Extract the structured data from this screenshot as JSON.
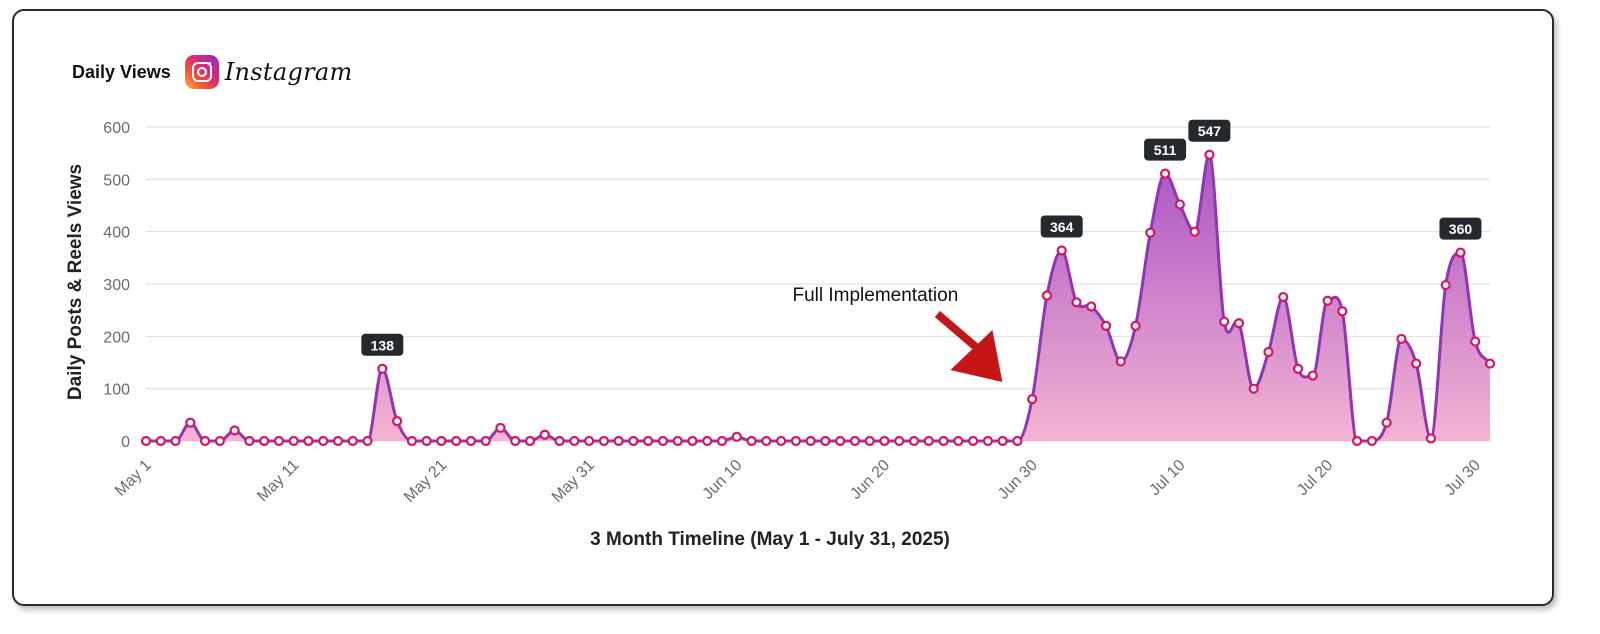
{
  "header": {
    "title": "Daily Views",
    "brand": "Instagram",
    "brand_icon": "instagram-icon"
  },
  "colors": {
    "line": "#8e35b8",
    "fill_top": "#a44bc0",
    "fill_bottom": "#f4b0d0",
    "marker": "#e0125e",
    "callout_bg": "#24292e",
    "arrow": "#c41616",
    "grid": "#dddddd"
  },
  "chart_data": {
    "type": "area",
    "title": "",
    "xlabel": "3 Month Timeline (May 1 - July 31, 2025)",
    "ylabel": "Daily Posts & Reels Views",
    "ylim": [
      0,
      600
    ],
    "yticks": [
      0,
      100,
      200,
      300,
      400,
      500,
      600
    ],
    "x_start": "May 1",
    "x_tick_labels": [
      {
        "label": "May 1",
        "day": 0
      },
      {
        "label": "May 11",
        "day": 10
      },
      {
        "label": "May 21",
        "day": 20
      },
      {
        "label": "May 31",
        "day": 30
      },
      {
        "label": "Jun 10",
        "day": 40
      },
      {
        "label": "Jun 20",
        "day": 50
      },
      {
        "label": "Jun 30",
        "day": 60
      },
      {
        "label": "Jul 10",
        "day": 70
      },
      {
        "label": "Jul 20",
        "day": 80
      },
      {
        "label": "Jul 30",
        "day": 90
      }
    ],
    "grid": true,
    "legend": "none",
    "series": [
      {
        "values": [
          0,
          0,
          0,
          35,
          0,
          0,
          20,
          0,
          0,
          0,
          0,
          0,
          0,
          0,
          0,
          0,
          138,
          38,
          0,
          0,
          0,
          0,
          0,
          0,
          25,
          0,
          0,
          12,
          0,
          0,
          0,
          0,
          0,
          0,
          0,
          0,
          0,
          0,
          0,
          0,
          8,
          0,
          0,
          0,
          0,
          0,
          0,
          0,
          0,
          0,
          0,
          0,
          0,
          0,
          0,
          0,
          0,
          0,
          0,
          0,
          80,
          278,
          364,
          265,
          257,
          220,
          152,
          220,
          398,
          511,
          452,
          400,
          547,
          228,
          225,
          100,
          170,
          275,
          138,
          125,
          268,
          248,
          0,
          0,
          35,
          195,
          148,
          5,
          298,
          360,
          190,
          148
        ]
      }
    ],
    "callouts": [
      {
        "day": 16,
        "label": "138"
      },
      {
        "day": 62,
        "label": "364"
      },
      {
        "day": 69,
        "label": "511"
      },
      {
        "day": 72,
        "label": "547"
      },
      {
        "day": 89,
        "label": "360"
      }
    ],
    "annotation": {
      "text": "Full Implementation",
      "day": 59
    }
  }
}
